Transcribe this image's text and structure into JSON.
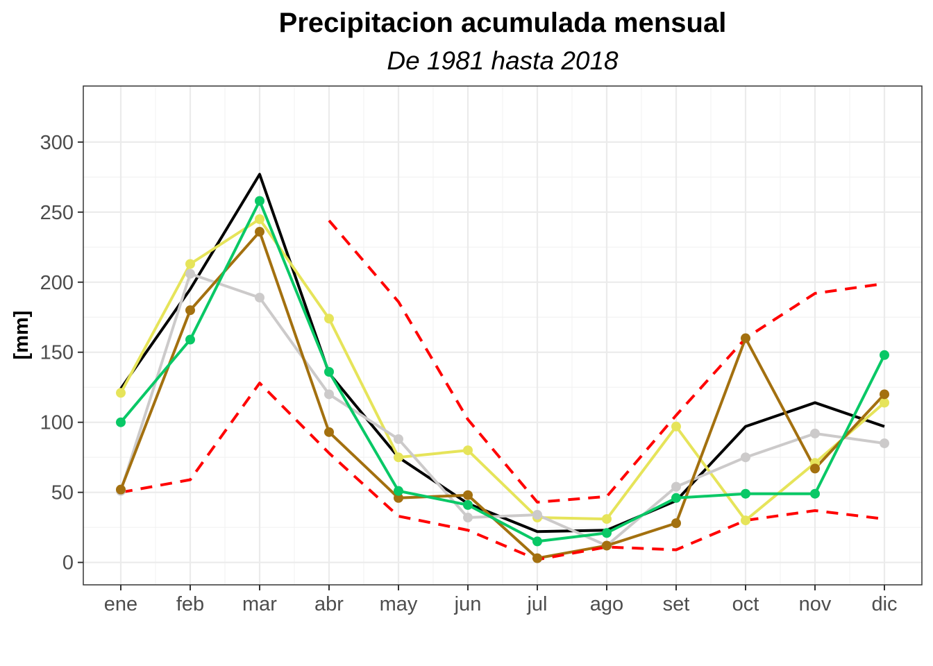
{
  "chart_data": {
    "type": "line",
    "title": "Precipitacion acumulada mensual",
    "subtitle": "De 1981 hasta 2018",
    "xlabel": "",
    "ylabel": "[mm]",
    "categories": [
      "ene",
      "feb",
      "mar",
      "abr",
      "may",
      "jun",
      "jul",
      "ago",
      "set",
      "oct",
      "nov",
      "dic"
    ],
    "ylim": [
      -16,
      340
    ],
    "yticks": [
      0,
      50,
      100,
      150,
      200,
      250,
      300
    ],
    "grid": true,
    "series": [
      {
        "color": "#000000",
        "line_style": "solid",
        "markers": false,
        "values": [
          124,
          195,
          277,
          135,
          75,
          42,
          22,
          23,
          44,
          97,
          114,
          97
        ]
      },
      {
        "color": "#e6e45a",
        "line_style": "solid",
        "markers": true,
        "values": [
          121,
          213,
          245,
          174,
          75,
          80,
          32,
          31,
          97,
          30,
          71,
          114
        ]
      },
      {
        "color": "#cccaca",
        "line_style": "solid",
        "markers": true,
        "values": [
          51,
          206,
          189,
          120,
          88,
          32,
          34,
          12,
          54,
          75,
          92,
          85
        ]
      },
      {
        "color": "#a3700f",
        "line_style": "solid",
        "markers": true,
        "values": [
          52,
          180,
          236,
          93,
          46,
          48,
          3,
          12,
          28,
          160,
          67,
          120
        ]
      },
      {
        "color": "#09c866",
        "line_style": "solid",
        "markers": true,
        "values": [
          100,
          159,
          258,
          136,
          51,
          41,
          15,
          21,
          46,
          49,
          49,
          148
        ]
      },
      {
        "color": "#ff0000",
        "line_style": "dashed",
        "markers": false,
        "values": [
          null,
          null,
          null,
          244,
          186,
          102,
          43,
          47,
          105,
          160,
          192,
          199
        ]
      },
      {
        "color": "#ff0000",
        "line_style": "dashed",
        "markers": false,
        "values": [
          50,
          59,
          128,
          78,
          33,
          23,
          2,
          11,
          9,
          30,
          37,
          31
        ]
      }
    ]
  }
}
